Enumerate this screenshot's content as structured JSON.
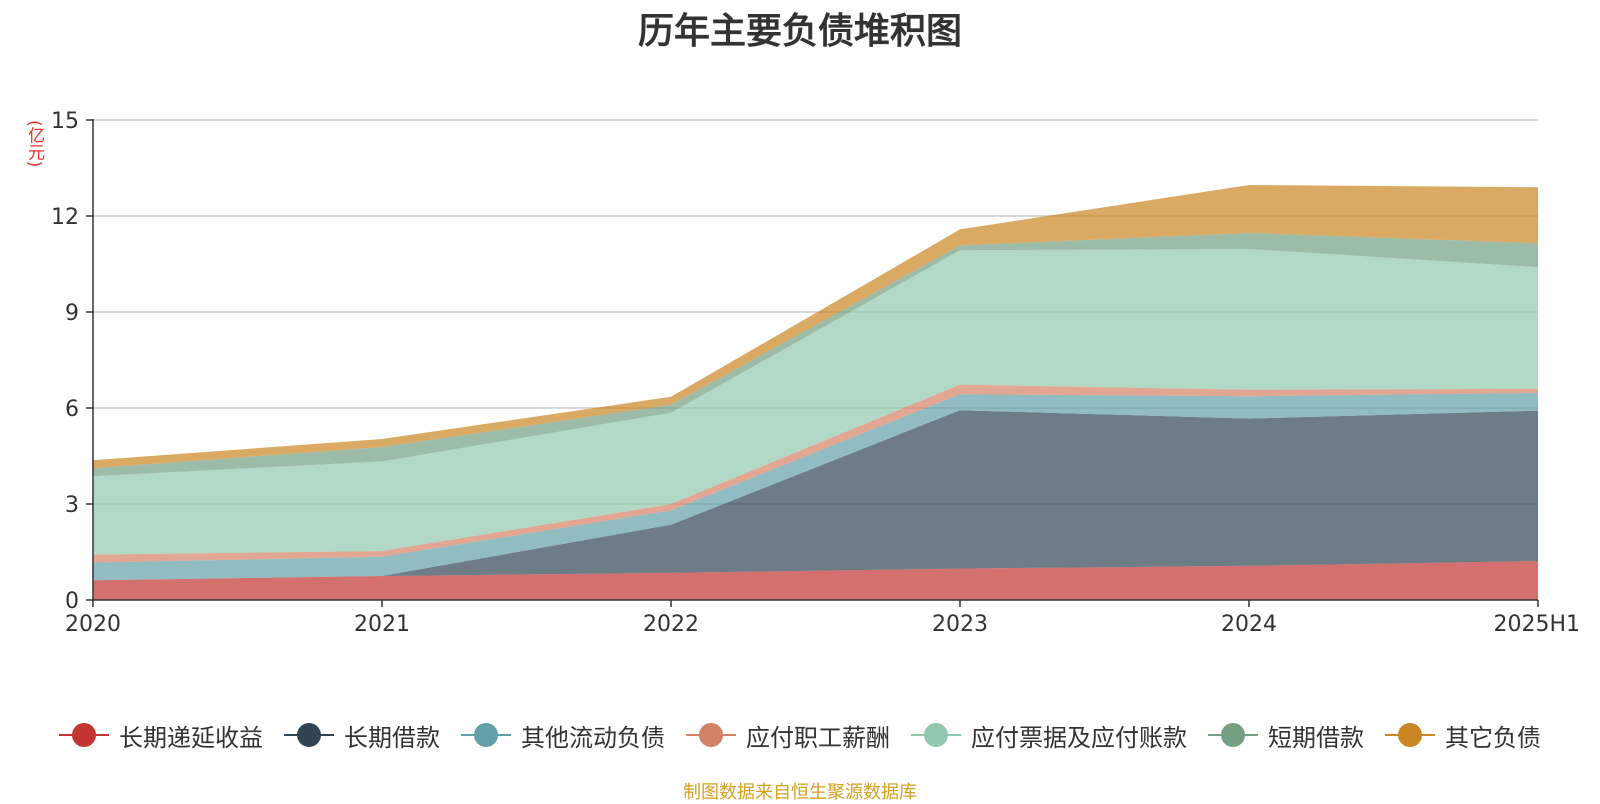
{
  "chart_data": {
    "type": "area",
    "stacked": true,
    "title": "历年主要负债堆积图",
    "ylabel": "(亿元)",
    "categories": [
      "2020",
      "2021",
      "2022",
      "2023",
      "2024",
      "2025H1"
    ],
    "ylim": [
      0,
      15
    ],
    "yticks": [
      0,
      3,
      6,
      9,
      12,
      15
    ],
    "grid": true,
    "legend_position": "bottom",
    "series": [
      {
        "name": "长期递延收益",
        "color": "#c23531",
        "values": [
          0.62,
          0.75,
          0.85,
          0.98,
          1.07,
          1.22
        ]
      },
      {
        "name": "长期借款",
        "color": "#2f4554",
        "values": [
          0.0,
          0.0,
          1.5,
          4.95,
          4.6,
          4.7
        ]
      },
      {
        "name": "其他流动负债",
        "color": "#61a0a8",
        "values": [
          0.55,
          0.6,
          0.45,
          0.5,
          0.7,
          0.55
        ]
      },
      {
        "name": "应付职工薪酬",
        "color": "#d48265",
        "values": [
          0.25,
          0.18,
          0.2,
          0.3,
          0.2,
          0.13
        ]
      },
      {
        "name": "应付票据及应付账款",
        "color": "#91c7ae",
        "values": [
          2.45,
          2.8,
          2.85,
          4.2,
          4.4,
          3.8
        ]
      },
      {
        "name": "短期借款",
        "color": "#749f83",
        "values": [
          0.25,
          0.45,
          0.25,
          0.15,
          0.5,
          0.75
        ]
      },
      {
        "name": "其它负债",
        "color": "#ca8622",
        "values": [
          0.25,
          0.25,
          0.25,
          0.5,
          1.5,
          1.75
        ]
      }
    ]
  },
  "source_note": "制图数据来自恒生聚源数据库"
}
